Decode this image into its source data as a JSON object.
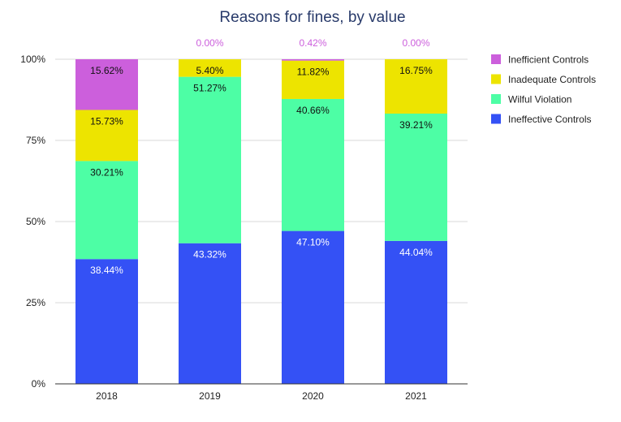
{
  "chart_data": {
    "type": "bar",
    "stacked": true,
    "title": "Reasons for fines, by value",
    "categories": [
      "2018",
      "2019",
      "2020",
      "2021"
    ],
    "ylim": [
      0,
      100
    ],
    "yticks": [
      {
        "value": 0,
        "label": "0%"
      },
      {
        "value": 25,
        "label": "25%"
      },
      {
        "value": 50,
        "label": "50%"
      },
      {
        "value": 75,
        "label": "75%"
      },
      {
        "value": 100,
        "label": "100%"
      }
    ],
    "legend_position": "right",
    "grid": true,
    "series": [
      {
        "name": "Ineffective Controls",
        "color": "#3451f5",
        "label_color": "#ffffff",
        "values": [
          38.44,
          43.32,
          47.1,
          44.04
        ],
        "labels": [
          "38.44%",
          "43.32%",
          "47.10%",
          "44.04%"
        ]
      },
      {
        "name": "Wilful Violation",
        "color": "#4dfea5",
        "label_color": "#111111",
        "values": [
          30.21,
          51.27,
          40.66,
          39.21
        ],
        "labels": [
          "30.21%",
          "51.27%",
          "40.66%",
          "39.21%"
        ]
      },
      {
        "name": "Inadequate Controls",
        "color": "#ede400",
        "label_color": "#111111",
        "values": [
          15.73,
          5.4,
          11.82,
          16.75
        ],
        "labels": [
          "15.73%",
          "5.40%",
          "11.82%",
          "16.75%"
        ]
      },
      {
        "name": "Inefficient Controls",
        "color": "#cc5fdc",
        "label_color": "#111111",
        "outside_label_color": "#cc5fdc",
        "values": [
          15.62,
          0.0,
          0.42,
          0.0
        ],
        "labels": [
          "15.62%",
          "0.00%",
          "0.42%",
          "0.00%"
        ]
      }
    ]
  }
}
